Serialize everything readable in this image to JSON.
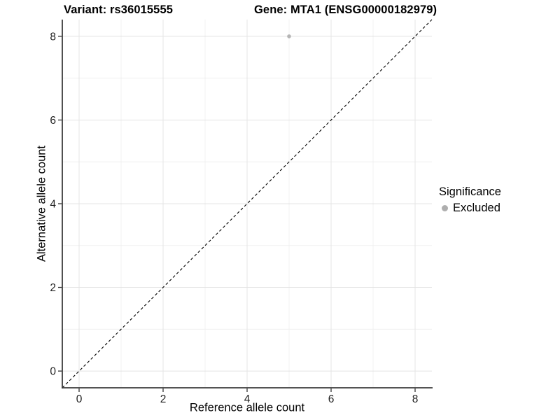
{
  "header": {
    "variant_title": "Variant: rs36015555",
    "gene_title": "Gene: MTA1 (ENSG00000182979)"
  },
  "axes": {
    "x": {
      "title": "Reference allele count",
      "tick_labels": [
        "0",
        "2",
        "4",
        "6",
        "8"
      ]
    },
    "y": {
      "title": "Alternative allele count",
      "tick_labels": [
        "0",
        "2",
        "4",
        "6",
        "8"
      ]
    }
  },
  "legend": {
    "title": "Significance",
    "items": [
      {
        "label": "Excluded",
        "color": "#aeaeae"
      }
    ]
  },
  "colors": {
    "point": "#b5b5b5",
    "grid_major": "#e4e4e4",
    "grid_minor": "#f0f0f0",
    "axis_line": "#3c3c3c",
    "tick_mark": "#333333",
    "reference_line": "#000000",
    "background": "#ffffff"
  },
  "chart_data": {
    "type": "scatter",
    "title": "Variant: rs36015555   Gene: MTA1 (ENSG00000182979)",
    "xlabel": "Reference allele count",
    "ylabel": "Alternative allele count",
    "xlim": [
      -0.4,
      8.4
    ],
    "ylim": [
      -0.4,
      8.4
    ],
    "x_ticks": [
      0,
      2,
      4,
      6,
      8
    ],
    "y_ticks": [
      0,
      2,
      4,
      6,
      8
    ],
    "grid": true,
    "grid_minor_at": [
      1,
      3,
      5,
      7
    ],
    "legend_position": "right",
    "series": [
      {
        "name": "Excluded",
        "color": "#b5b5b5",
        "points": [
          {
            "x": 5,
            "y": 8
          }
        ]
      }
    ],
    "reference_line": {
      "type": "identity (y = x)",
      "style": "dashed",
      "x_start": -0.4,
      "y_start": -0.4,
      "x_end": 8.4,
      "y_end": 8.4
    }
  }
}
